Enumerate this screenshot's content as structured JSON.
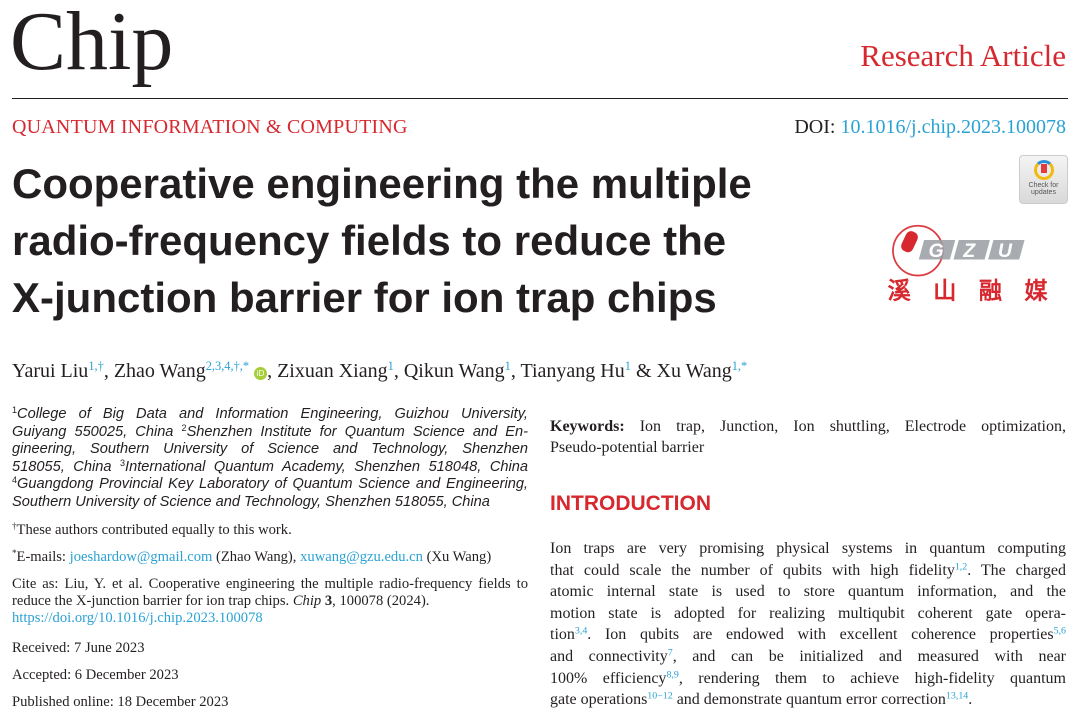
{
  "header": {
    "journal": "Chip",
    "article_type": "Research Article",
    "section": "QUANTUM INFORMATION & COMPUTING",
    "doi_label": "DOI:",
    "doi": "10.1016/j.chip.2023.100078",
    "check_updates": [
      "Check for",
      "updates"
    ]
  },
  "title_lines": [
    "Cooperative engineering the multiple",
    "radio-frequency fields to reduce the",
    "X-junction barrier for ion trap chips"
  ],
  "authors": [
    {
      "name": "Yarui Liu",
      "sup": "1,†"
    },
    {
      "name": "Zhao Wang",
      "sup": "2,3,4,†,*"
    },
    {
      "name": "Zixuan Xiang",
      "sup": "1"
    },
    {
      "name": "Qikun Wang",
      "sup": "1"
    },
    {
      "name": "Tianyang Hu",
      "sup": "1"
    },
    {
      "name": "Xu Wang",
      "sup": "1,*"
    }
  ],
  "orcid": "iD",
  "affiliations_lines": [
    {
      "sup": "1",
      "text": "College of Big Data and Information Engineering, Guizhou University,"
    },
    {
      "text": "Guiyang 550025, China ",
      "sup2": "2",
      "text2": "Shenzhen Institute for Quantum Science and En-"
    },
    {
      "text": "gineering, Southern University of Science and Technology, Shenzhen"
    },
    {
      "text": "518055, China ",
      "sup2": "3",
      "text2": "International Quantum Academy, Shenzhen 518048, China"
    },
    {
      "sup": "4",
      "text": "Guangdong Provincial Key Laboratory of Quantum Science and Engineering,"
    },
    {
      "text": "Southern University of Science and Technology, Shenzhen 518055, China"
    }
  ],
  "equal_note": {
    "sup": "†",
    "text": "These authors contributed equally to this work."
  },
  "emails": {
    "sup": "*",
    "label": "E-mails: ",
    "email1": "joeshardow@gmail.com",
    "who1": " (Zhao Wang), ",
    "email2": "xuwang@gzu.edu.cn",
    "who2": " (Xu Wang)"
  },
  "cite": {
    "line1": "Cite as: Liu, Y. et al. Cooperative engineering the multiple radio-frequency fields to",
    "line2a": "reduce the X-junction barrier for ion trap chips. ",
    "journal": "Chip",
    "vol": "3",
    "line2b": ", 100078 (2024).",
    "url": "https://doi.org/10.1016/j.chip.2023.100078"
  },
  "dates": [
    "Received: 7 June 2023",
    "Accepted: 6 December 2023",
    "Published online: 18 December 2023"
  ],
  "keywords": {
    "label": "Keywords:",
    "line1": " Ion trap, Junction, Ion shuttling, Electrode optimization,",
    "line2": "Pseudo-potential barrier"
  },
  "intro_heading": "INTRODUCTION",
  "intro_lines": [
    {
      "t": "Ion traps are very promising physical systems in quantum computing"
    },
    {
      "t": "that could scale the number of qubits with high fidelity",
      "s": "1,2",
      "t2": ". The charged"
    },
    {
      "t": "atomic internal state is used to store quantum information, and the"
    },
    {
      "t": "motion state is adopted for realizing multiqubit coherent gate opera-"
    },
    {
      "t": "tion",
      "s": "3,4",
      "t2": ". Ion qubits are endowed with excellent coherence properties",
      "s2": "5,6"
    },
    {
      "t": "and connectivity",
      "s": "7",
      "t2": ", and can be initialized and measured with near"
    },
    {
      "t": "100% efficiency",
      "s": "8,9",
      "t2": ", rendering them to achieve high-fidelity quantum"
    },
    {
      "t": "gate operations",
      "s": "10−12",
      "t2": " and demonstrate quantum error correction",
      "s2": "13,14",
      "t3": "."
    }
  ],
  "watermark": {
    "logo": "GZU",
    "text": "溪山融媒"
  },
  "colors": {
    "accent": "#d7282f",
    "link": "#2aa2d4",
    "text": "#231f20"
  }
}
